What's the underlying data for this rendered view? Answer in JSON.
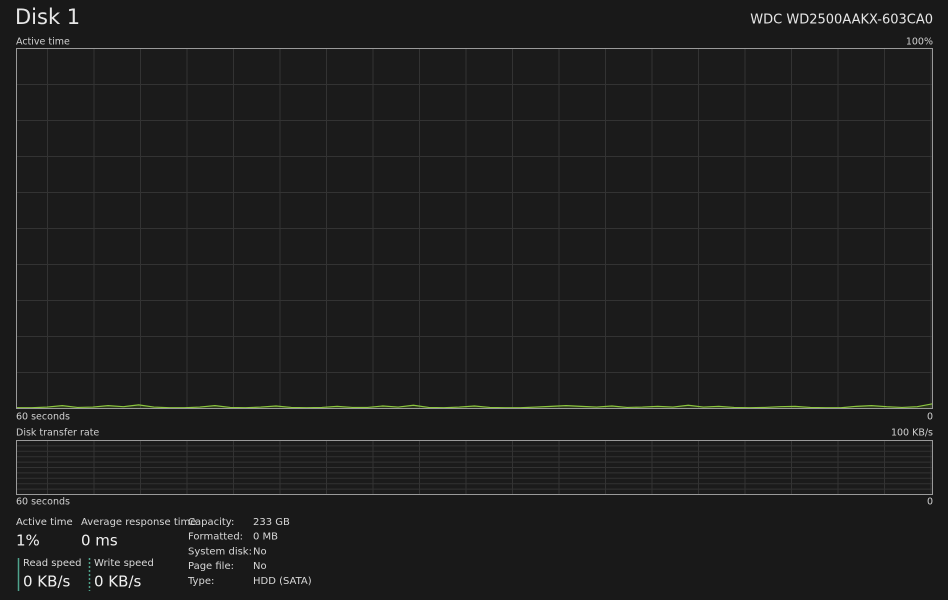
{
  "header": {
    "title": "Disk 1",
    "model": "WDC WD2500AAKX-603CA0"
  },
  "active_time_graph": {
    "label": "Active time",
    "max_label": "100%",
    "time_label": "60 seconds",
    "min_label": "0",
    "ylim": [
      0,
      100
    ],
    "color": "#8cc63f",
    "values": [
      0.2,
      0.2,
      0.4,
      0.8,
      0.3,
      0.4,
      0.8,
      0.5,
      1,
      0.4,
      0.2,
      0.2,
      0.4,
      0.8,
      0.3,
      0.2,
      0.4,
      0.7,
      0.3,
      0.2,
      0.3,
      0.6,
      0.3,
      0.3,
      0.7,
      0.4,
      0.9,
      0.3,
      0.2,
      0.4,
      0.7,
      0.3,
      0.2,
      0.2,
      0.4,
      0.6,
      0.8,
      0.6,
      0.4,
      0.7,
      0.3,
      0.4,
      0.6,
      0.4,
      0.9,
      0.4,
      0.6,
      0.3,
      0.2,
      0.3,
      0.5,
      0.6,
      0.3,
      0.2,
      0.2,
      0.6,
      0.8,
      0.5,
      0.3,
      0.5,
      1.3
    ]
  },
  "transfer_rate_graph": {
    "label": "Disk transfer rate",
    "max_label": "100 KB/s",
    "time_label": "60 seconds",
    "min_label": "0"
  },
  "stats": [
    {
      "label": "Active time",
      "value": "1%"
    },
    {
      "label": "Average response time",
      "value": "0 ms"
    },
    {
      "label": "Read speed",
      "value": "0 KB/s"
    },
    {
      "label": "Write speed",
      "value": "0 KB/s"
    }
  ],
  "properties": [
    {
      "label": "Capacity:",
      "value": "233 GB"
    },
    {
      "label": "Formatted:",
      "value": "0 MB"
    },
    {
      "label": "System disk:",
      "value": "No"
    },
    {
      "label": "Page file:",
      "value": "No"
    },
    {
      "label": "Type:",
      "value": "HDD (SATA)"
    }
  ]
}
